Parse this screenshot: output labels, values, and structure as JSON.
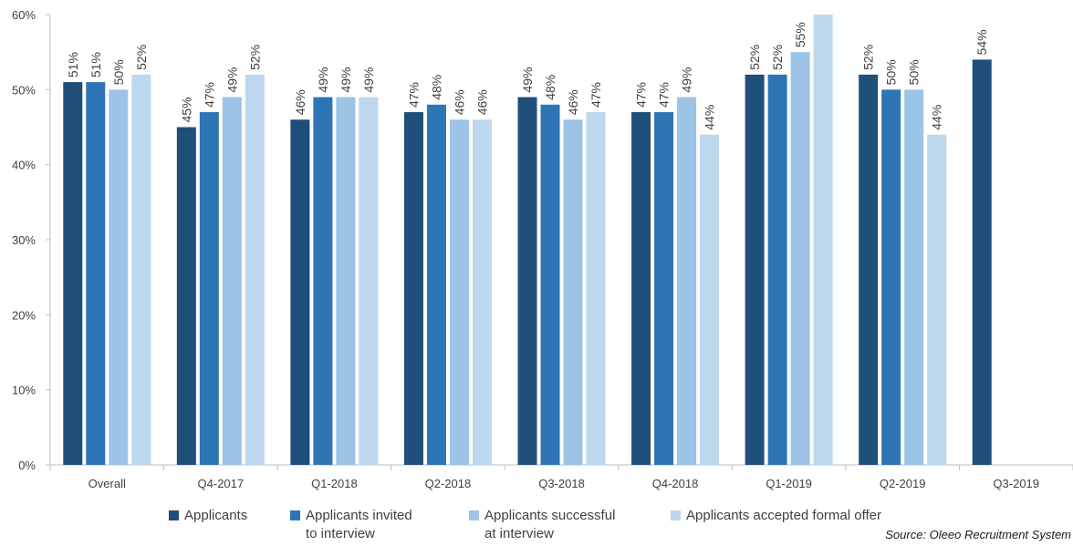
{
  "chart_data": {
    "type": "bar",
    "categories": [
      "Overall",
      "Q4-2017",
      "Q1-2018",
      "Q2-2018",
      "Q3-2018",
      "Q4-2018",
      "Q1-2019",
      "Q2-2019",
      "Q3-2019"
    ],
    "series": [
      {
        "name": "Applicants",
        "color": "#1f4e79",
        "values": [
          51,
          45,
          46,
          47,
          49,
          47,
          52,
          52,
          54
        ],
        "labels": [
          "51%",
          "45%",
          "46%",
          "47%",
          "49%",
          "47%",
          "52%",
          "52%",
          "54%"
        ]
      },
      {
        "name": "Applicants invited to interview",
        "color": "#2e75b6",
        "values": [
          51,
          47,
          49,
          48,
          48,
          47,
          52,
          50,
          null
        ],
        "labels": [
          "51%",
          "47%",
          "49%",
          "48%",
          "48%",
          "47%",
          "52%",
          "50%",
          null
        ]
      },
      {
        "name": "Applicants successful at interview",
        "color": "#9dc3e6",
        "values": [
          50,
          49,
          49,
          46,
          46,
          49,
          55,
          50,
          null
        ],
        "labels": [
          "50%",
          "49%",
          "49%",
          "46%",
          "46%",
          "49%",
          "55%",
          "50%",
          null
        ]
      },
      {
        "name": "Applicants accepted formal offer",
        "color": "#bdd7ee",
        "values": [
          52,
          52,
          49,
          46,
          47,
          44,
          60,
          44,
          null
        ],
        "labels": [
          "52%",
          "52%",
          "49%",
          "46%",
          "47%",
          "44%",
          null,
          "44%",
          null
        ]
      }
    ],
    "ylim": [
      0,
      60
    ],
    "yticks": [
      "0%",
      "10%",
      "20%",
      "30%",
      "40%",
      "50%",
      "60%"
    ],
    "grid": false,
    "legend_position": "bottom"
  },
  "legend": {
    "items": [
      {
        "line1": "Applicants",
        "line2": ""
      },
      {
        "line1": "Applicants invited",
        "line2": "to interview"
      },
      {
        "line1": "Applicants successful",
        "line2": "at interview"
      },
      {
        "line1": "Applicants accepted formal offer",
        "line2": ""
      }
    ]
  },
  "source": "Source: Oleeo Recruitment System"
}
